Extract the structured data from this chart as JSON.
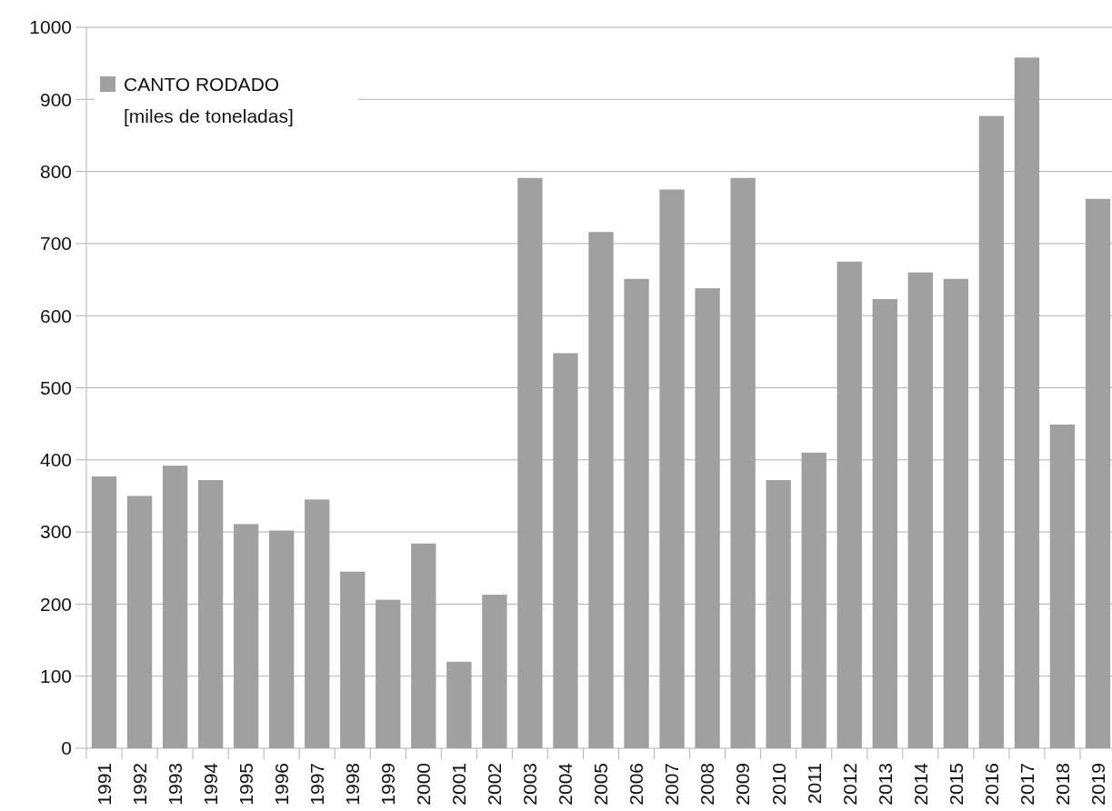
{
  "chart_data": {
    "type": "bar",
    "categories": [
      "1991",
      "1992",
      "1993",
      "1994",
      "1995",
      "1996",
      "1997",
      "1998",
      "1999",
      "2000",
      "2001",
      "2002",
      "2003",
      "2004",
      "2005",
      "2006",
      "2007",
      "2008",
      "2009",
      "2010",
      "2011",
      "2012",
      "2013",
      "2014",
      "2015",
      "2016",
      "2017",
      "2018",
      "2019"
    ],
    "series": [
      {
        "name": "CANTO RODADO\n[miles de toneladas]",
        "color": "#a0a0a0",
        "values": [
          377,
          350,
          392,
          372,
          311,
          302,
          345,
          245,
          206,
          284,
          120,
          213,
          791,
          548,
          716,
          651,
          775,
          638,
          791,
          372,
          410,
          675,
          623,
          660,
          651,
          877,
          958,
          449,
          762
        ]
      }
    ],
    "ylim": [
      0,
      1000
    ],
    "yticks": [
      0,
      100,
      200,
      300,
      400,
      500,
      600,
      700,
      800,
      900,
      1000
    ],
    "grid": "y",
    "legend": "top left"
  }
}
